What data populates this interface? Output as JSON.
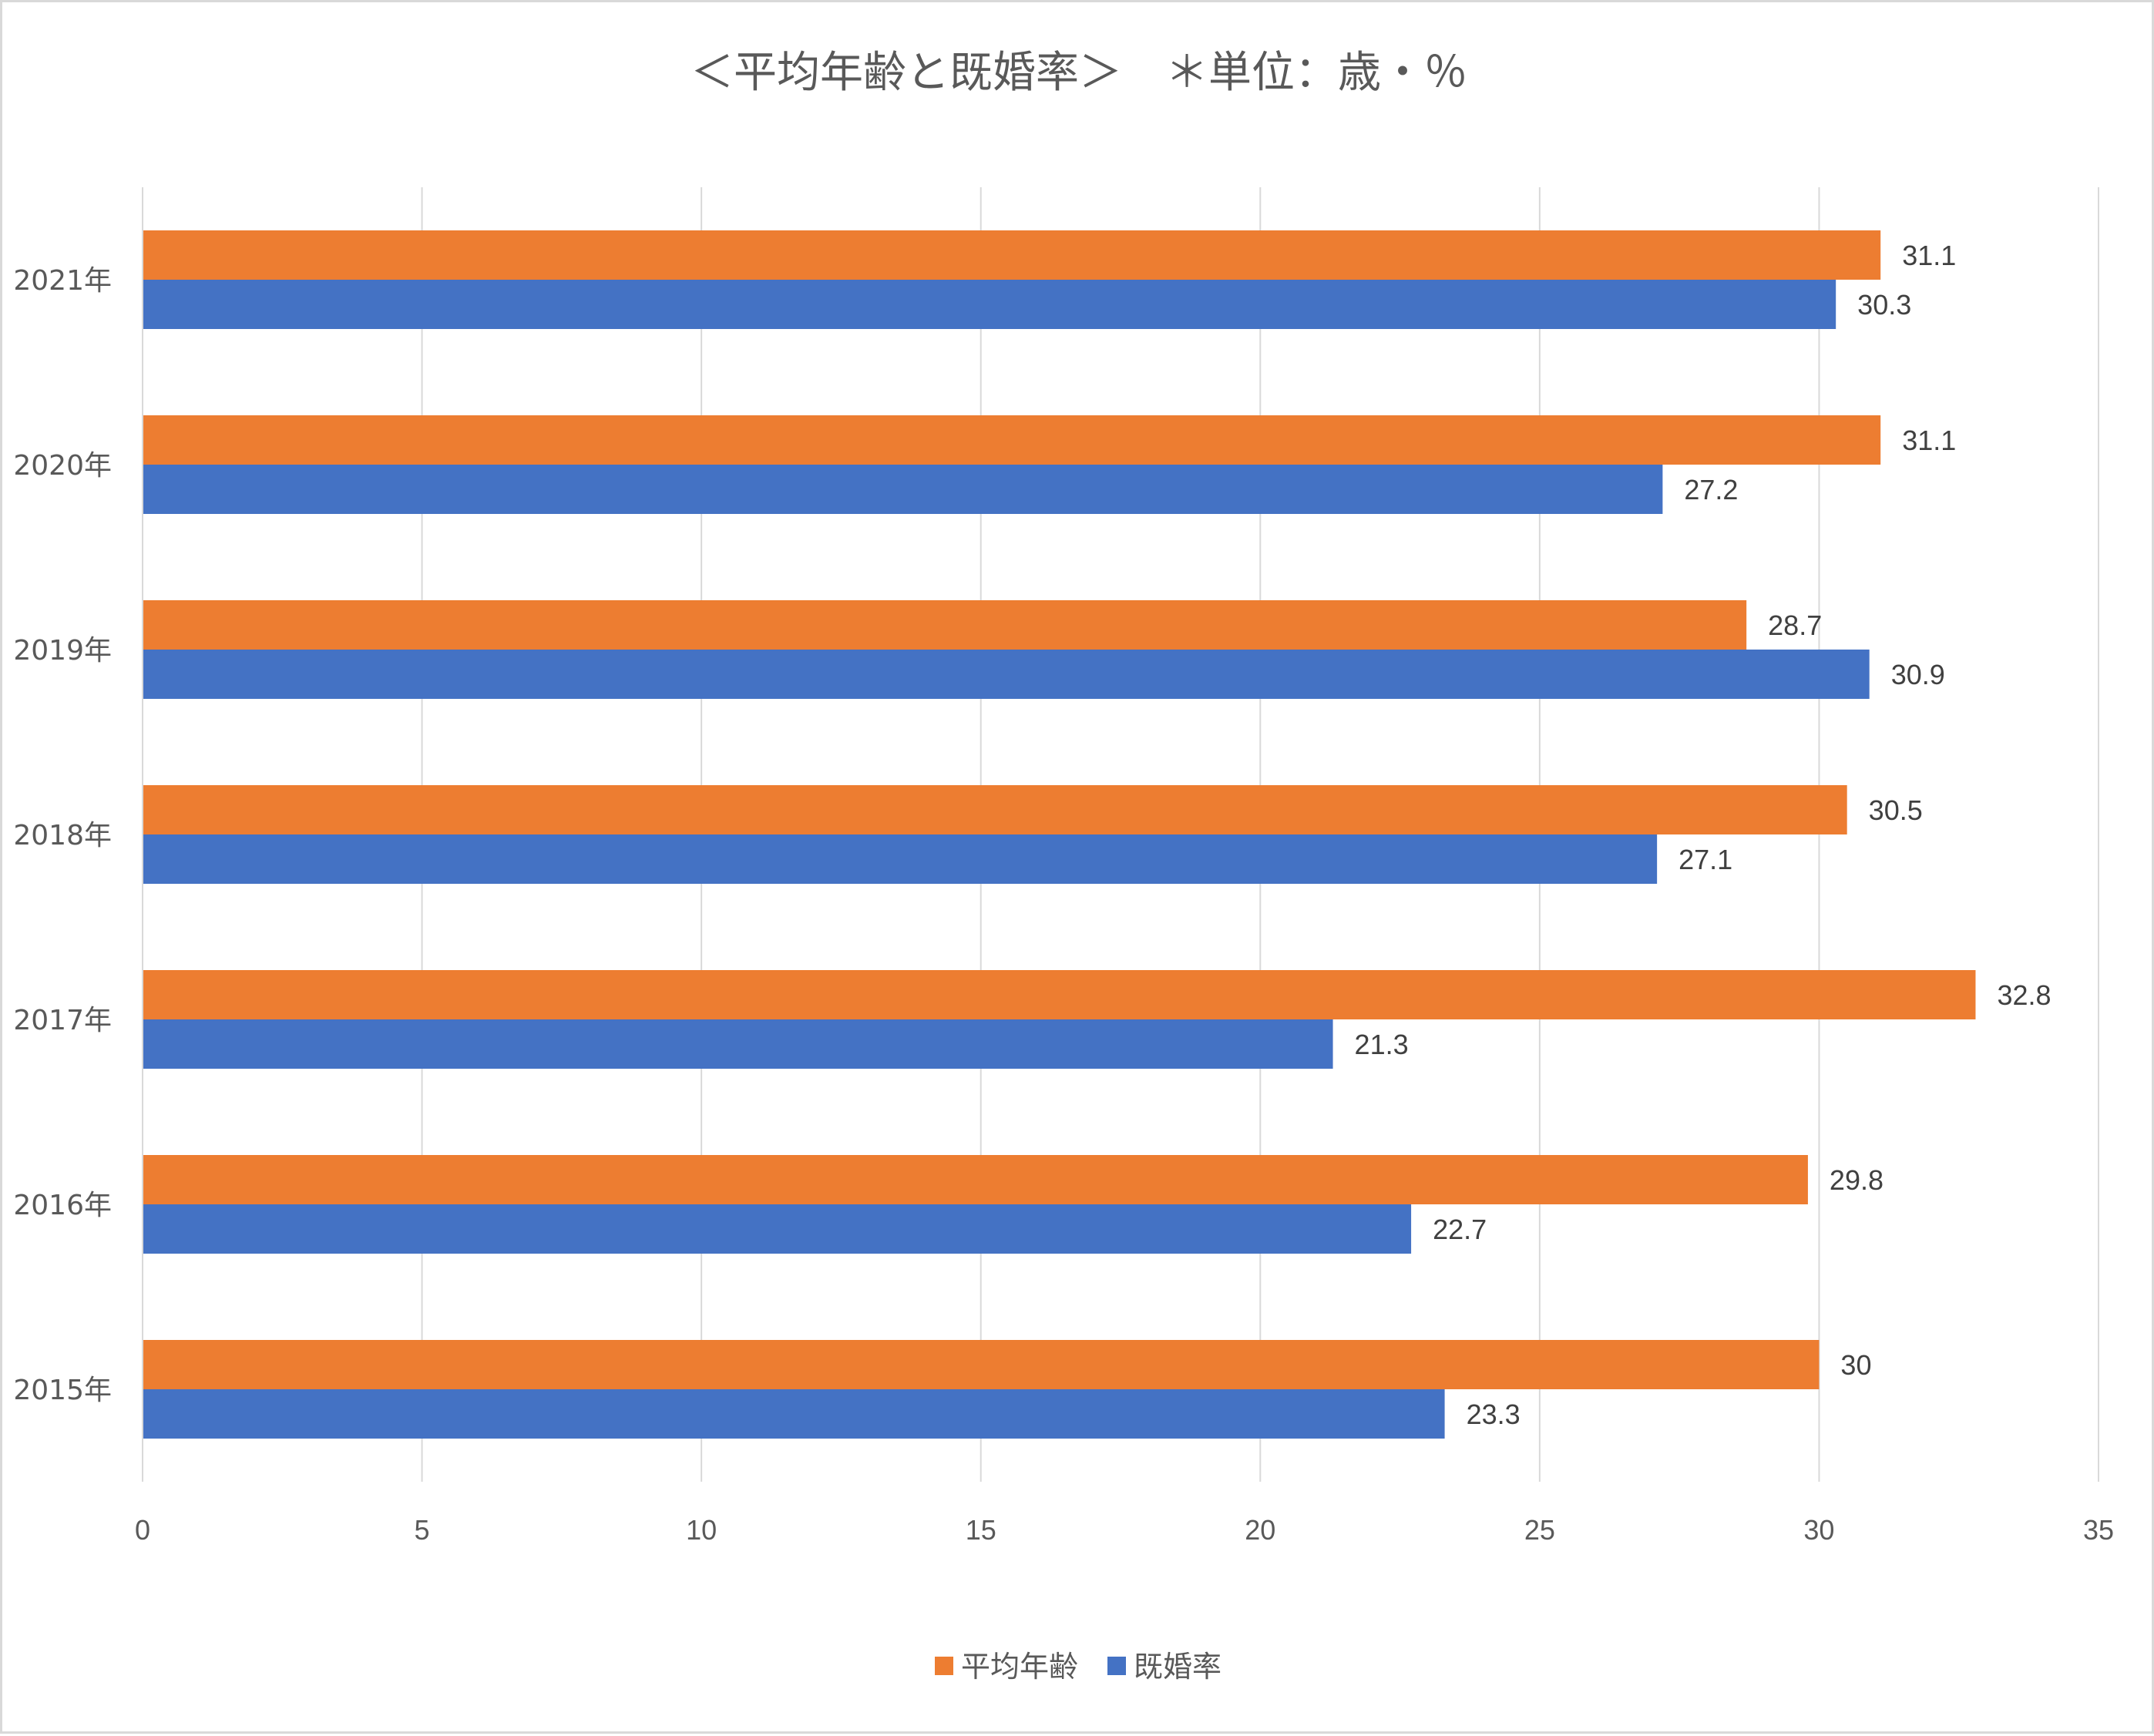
{
  "chart_data": {
    "type": "bar",
    "orientation": "horizontal",
    "title": "＜平均年齢と既婚率＞　＊単位：歳・％",
    "categories": [
      "2015年",
      "2016年",
      "2017年",
      "2018年",
      "2019年",
      "2020年",
      "2021年"
    ],
    "series": [
      {
        "name": "平均年齢",
        "color": "#ED7D31",
        "values": [
          30,
          29.8,
          32.8,
          30.5,
          28.7,
          31.1,
          31.1
        ]
      },
      {
        "name": "既婚率",
        "color": "#4472C4",
        "values": [
          23.3,
          22.7,
          21.3,
          27.1,
          30.9,
          27.2,
          30.3
        ]
      }
    ],
    "value_labels": {
      "平均年齢": [
        "30",
        "29.8",
        "32.8",
        "30.5",
        "28.7",
        "31.1",
        "31.1"
      ],
      "既婚率": [
        "23.3",
        "22.7",
        "21.3",
        "27.1",
        "30.9",
        "27.2",
        "30.3"
      ]
    },
    "xlim": [
      0,
      35
    ],
    "xticks": [
      0,
      5,
      10,
      15,
      20,
      25,
      30,
      35
    ],
    "xtick_labels": [
      "0",
      "5",
      "10",
      "15",
      "20",
      "25",
      "30",
      "35"
    ],
    "grid": true,
    "legend": "bottom"
  }
}
